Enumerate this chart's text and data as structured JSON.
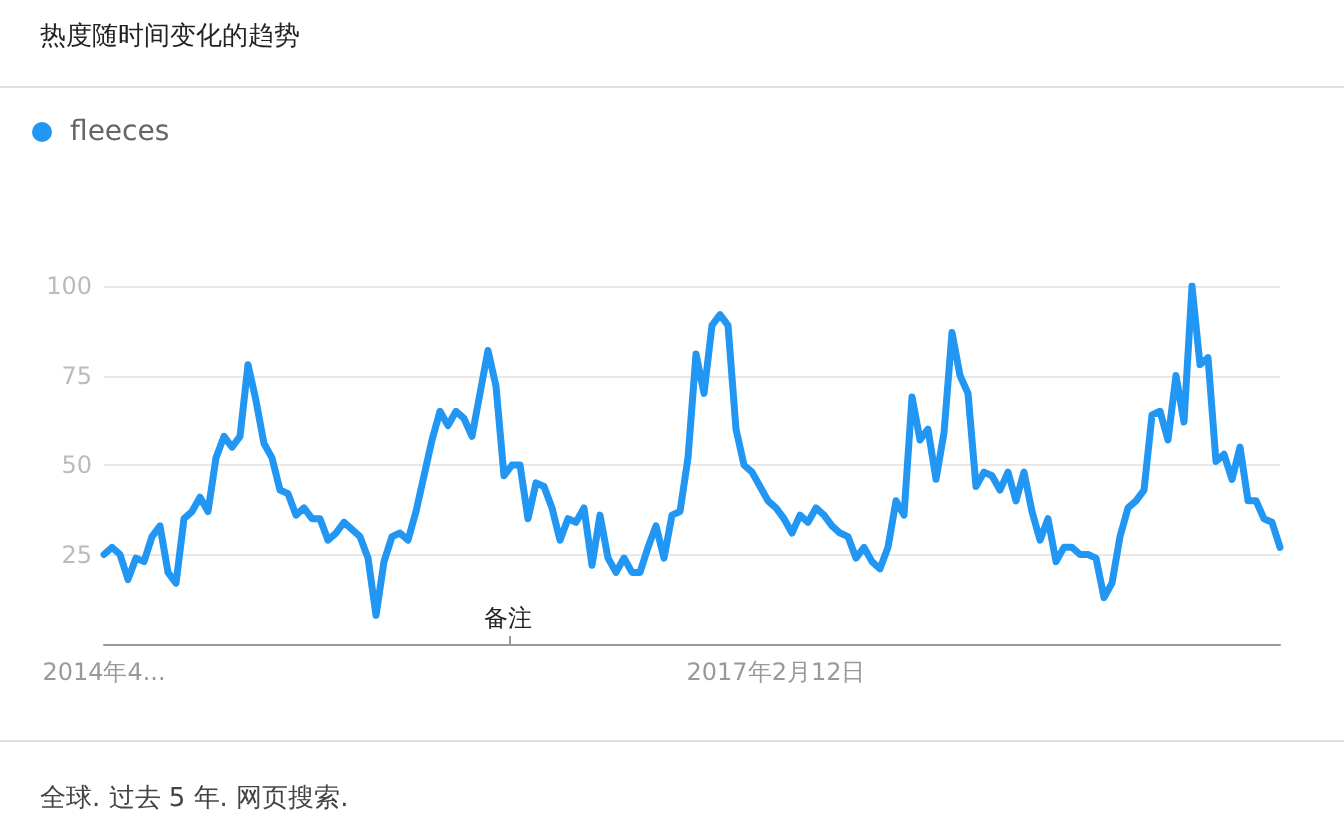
{
  "chart_data": {
    "type": "line",
    "title": "热度随时间变化的趋势",
    "categories": [
      "2014年4...",
      null,
      null,
      null,
      null,
      null,
      null,
      null,
      null,
      null,
      null,
      null,
      null,
      null,
      null,
      null,
      null,
      null,
      null,
      null,
      null,
      null,
      null,
      null,
      null,
      null,
      null,
      null,
      null,
      null,
      null,
      null,
      null,
      null,
      null,
      null,
      null,
      null,
      null,
      null,
      null,
      null,
      null,
      null,
      null,
      null,
      null,
      null,
      null,
      null,
      null,
      null,
      null,
      null,
      null,
      null,
      null,
      null,
      null,
      null,
      null,
      null,
      null,
      null,
      null,
      null,
      null,
      null,
      null,
      null,
      null,
      null,
      null,
      null,
      null,
      null,
      null,
      null,
      null,
      null,
      null,
      null,
      null,
      null,
      "2017年2月12日",
      null,
      null,
      null,
      null,
      null,
      null,
      null,
      null,
      null,
      null,
      null,
      null,
      null,
      null,
      null,
      null,
      null,
      null,
      null,
      null,
      null,
      null,
      null,
      null,
      null,
      null,
      null,
      null,
      null,
      null,
      null,
      null,
      null,
      null,
      null,
      null,
      null,
      null,
      null,
      null,
      null,
      null,
      null,
      null,
      null,
      null,
      null,
      null,
      null,
      null,
      null,
      null,
      null,
      null,
      null,
      null,
      null,
      null,
      null,
      null,
      null,
      null,
      null
    ],
    "series": [
      {
        "name": "fleeces",
        "color": "#2196f3",
        "values": [
          25,
          27,
          25,
          18,
          24,
          23,
          30,
          33,
          20,
          17,
          35,
          37,
          41,
          37,
          52,
          58,
          55,
          58,
          78,
          68,
          56,
          52,
          43,
          42,
          36,
          38,
          35,
          35,
          29,
          31,
          34,
          32,
          30,
          24,
          8,
          23,
          30,
          31,
          29,
          37,
          47,
          57,
          65,
          61,
          65,
          63,
          58,
          70,
          82,
          72,
          47,
          50,
          50,
          35,
          45,
          44,
          38,
          29,
          35,
          34,
          38,
          22,
          36,
          24,
          20,
          24,
          20,
          20,
          27,
          33,
          24,
          36,
          37,
          52,
          81,
          70,
          89,
          92,
          89,
          60,
          50,
          48,
          44,
          40,
          38,
          35,
          31,
          36,
          34,
          38,
          36,
          33,
          31,
          30,
          24,
          27,
          23,
          21,
          27,
          40,
          36,
          69,
          57,
          60,
          46,
          59,
          87,
          75,
          70,
          44,
          48,
          47,
          43,
          48,
          40,
          48,
          37,
          29,
          35,
          23,
          27,
          27,
          25,
          25,
          24,
          13,
          17,
          30,
          38,
          40,
          43,
          64,
          65,
          57,
          75,
          62,
          100,
          78,
          80,
          51,
          53,
          46,
          55,
          40,
          40,
          35,
          34,
          27
        ]
      }
    ],
    "ylim": [
      0,
      100
    ],
    "yticks": [
      25,
      50,
      75,
      100
    ],
    "grid": "y",
    "legend": "top left",
    "marker": "none",
    "line_style": "solid",
    "annotations": [
      "备注",
      "全球. 过去 5 年. 网页搜索."
    ]
  }
}
